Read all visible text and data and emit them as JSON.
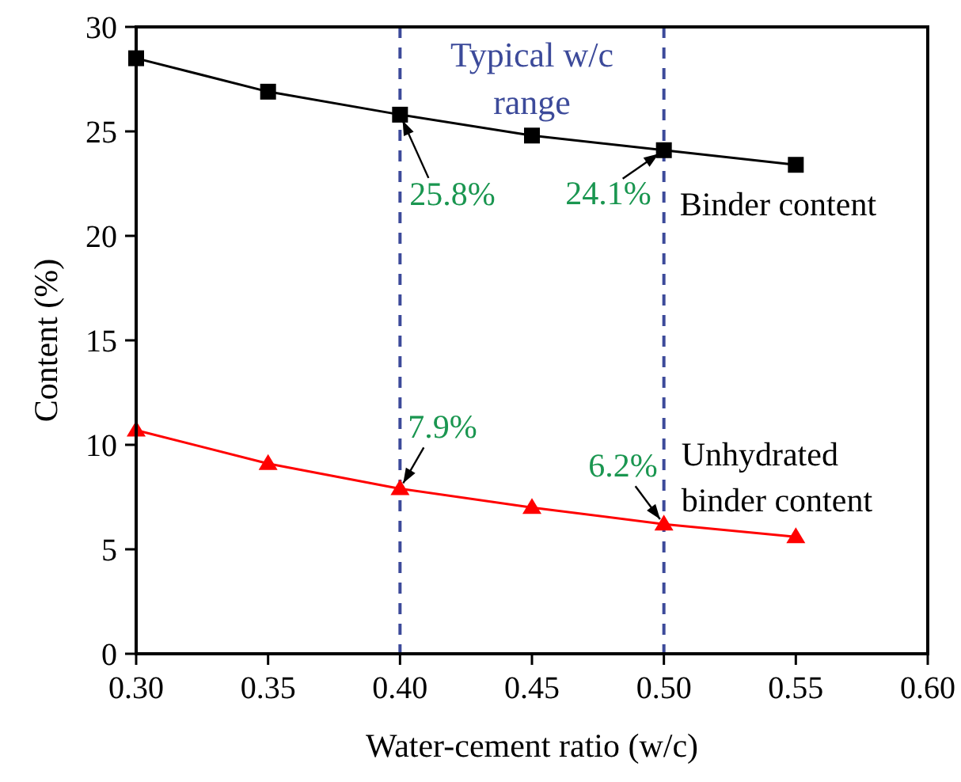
{
  "chart_data": {
    "type": "line",
    "xlabel": "Water-cement ratio (w/c)",
    "ylabel": "Content (%)",
    "x": [
      0.3,
      0.35,
      0.4,
      0.45,
      0.5,
      0.55
    ],
    "series": [
      {
        "name": "Binder content",
        "color": "#000000",
        "marker": "square",
        "values": [
          28.5,
          26.9,
          25.8,
          24.8,
          24.1,
          23.4
        ],
        "value_labels": [
          null,
          null,
          "25.8%",
          null,
          "24.1%",
          null
        ]
      },
      {
        "name": "Unhydrated binder content",
        "color": "#ff0000",
        "marker": "triangle",
        "values": [
          10.7,
          9.1,
          7.9,
          7.0,
          6.2,
          5.6
        ],
        "value_labels": [
          null,
          null,
          "7.9%",
          null,
          "6.2%",
          null
        ]
      }
    ],
    "xlim": [
      0.3,
      0.6
    ],
    "xticks": [
      {
        "value": 0.3,
        "label": "0.30"
      },
      {
        "value": 0.35,
        "label": "0.35"
      },
      {
        "value": 0.4,
        "label": "0.40"
      },
      {
        "value": 0.45,
        "label": "0.45"
      },
      {
        "value": 0.5,
        "label": "0.50"
      },
      {
        "value": 0.55,
        "label": "0.55"
      },
      {
        "value": 0.6,
        "label": "0.60"
      }
    ],
    "ylim": [
      0,
      30
    ],
    "yticks": [
      0,
      5,
      10,
      15,
      20,
      25,
      30
    ],
    "ref_lines": [
      {
        "axis": "x",
        "value": 0.4,
        "color": "#3c4a9a",
        "line_style": "dashed"
      },
      {
        "axis": "x",
        "value": 0.5,
        "color": "#3c4a9a",
        "line_style": "dashed"
      }
    ],
    "annotations": [
      "Typical w/c range"
    ],
    "grid": false,
    "legend": "right"
  }
}
